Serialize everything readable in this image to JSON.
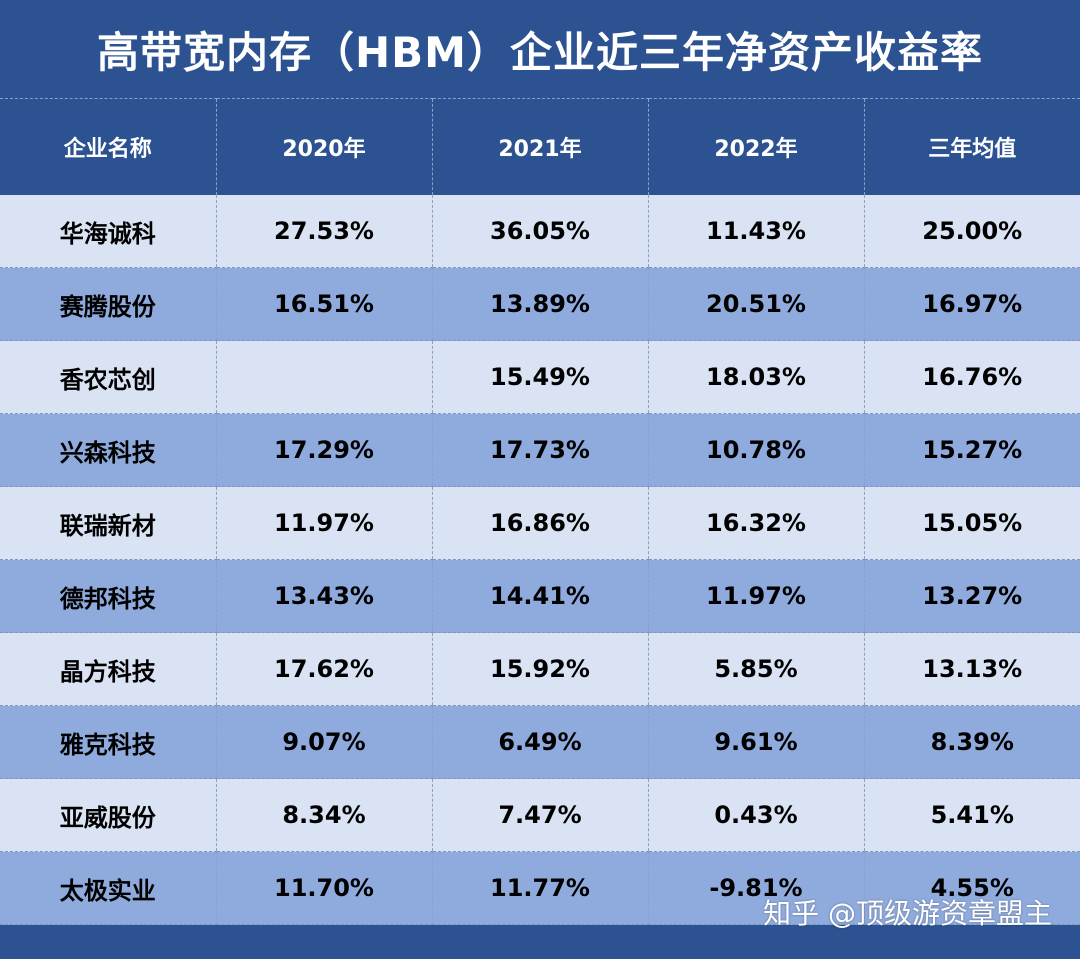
{
  "chart_data": {
    "type": "table",
    "title": "高带宽内存（HBM）企业近三年净资产收益率",
    "columns": [
      "企业名称",
      "2020年",
      "2021年",
      "2022年",
      "三年均值"
    ],
    "rows": [
      [
        "华海诚科",
        "27.53%",
        "36.05%",
        "11.43%",
        "25.00%"
      ],
      [
        "赛腾股份",
        "16.51%",
        "13.89%",
        "20.51%",
        "16.97%"
      ],
      [
        "香农芯创",
        "",
        "15.49%",
        "18.03%",
        "16.76%"
      ],
      [
        "兴森科技",
        "17.29%",
        "17.73%",
        "10.78%",
        "15.27%"
      ],
      [
        "联瑞新材",
        "11.97%",
        "16.86%",
        "16.32%",
        "15.05%"
      ],
      [
        "德邦科技",
        "13.43%",
        "14.41%",
        "11.97%",
        "13.27%"
      ],
      [
        "晶方科技",
        "17.62%",
        "15.92%",
        "5.85%",
        "13.13%"
      ],
      [
        "雅克科技",
        "9.07%",
        "6.49%",
        "9.61%",
        "8.39%"
      ],
      [
        "亚威股份",
        "8.34%",
        "7.47%",
        "0.43%",
        "5.41%"
      ],
      [
        "太极实业",
        "11.70%",
        "11.77%",
        "-9.81%",
        "4.55%"
      ]
    ]
  },
  "watermark": "知乎 @顶级游资章盟主",
  "colors": {
    "header_bg": "#2c5291",
    "row_light": "#dae3f3",
    "row_dark": "#8faadc",
    "header_text": "#ffffff"
  }
}
